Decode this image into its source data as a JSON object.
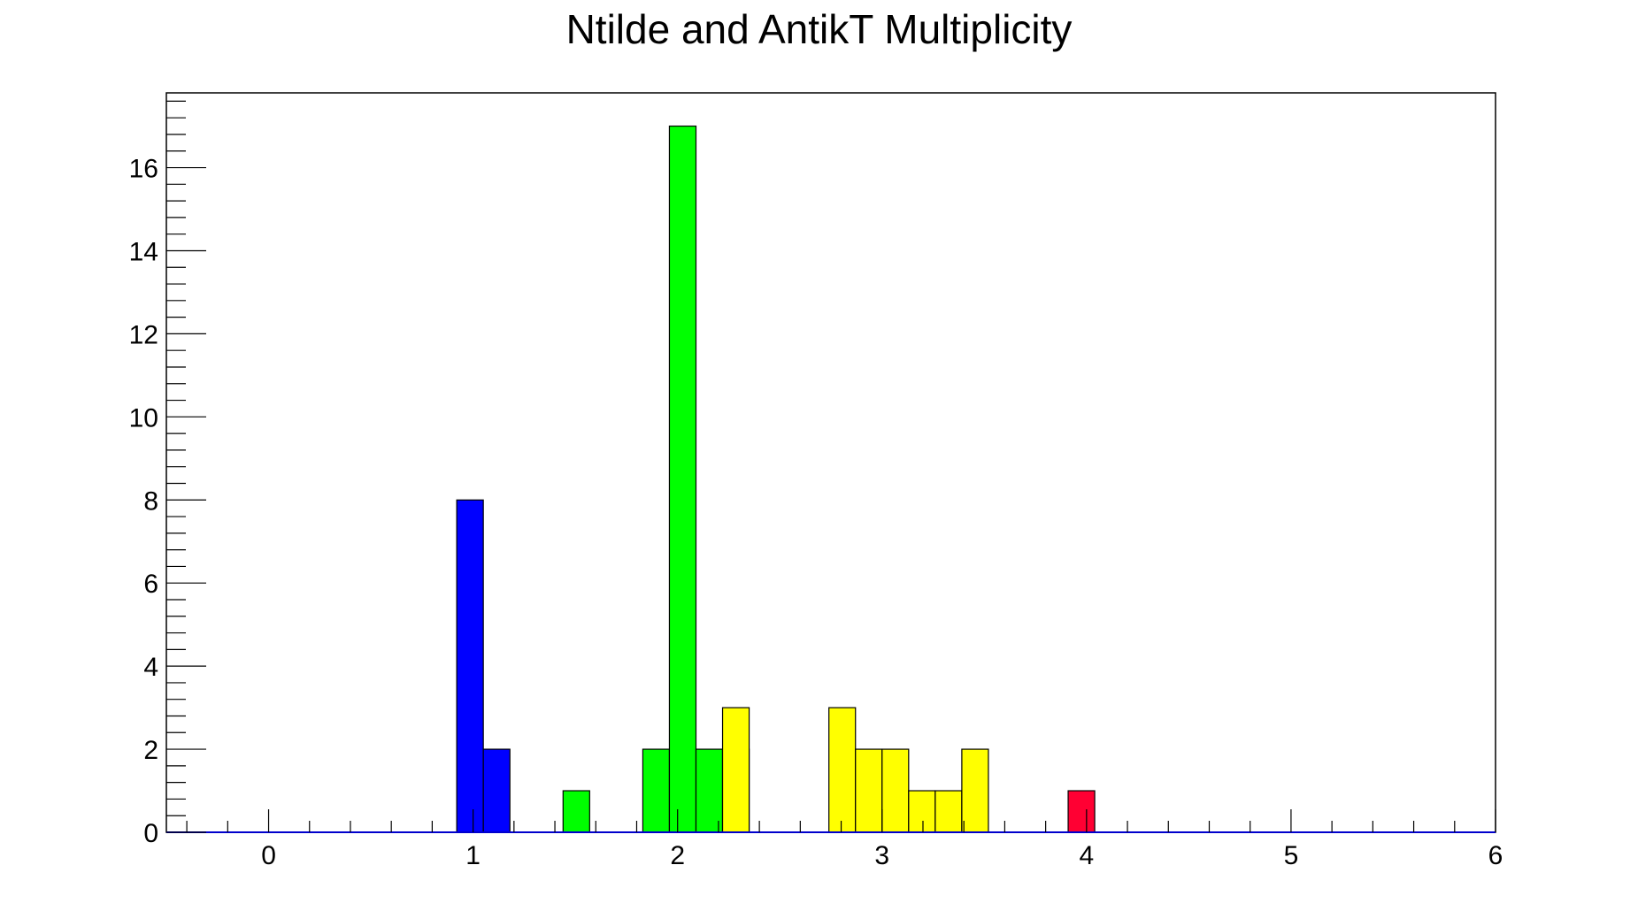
{
  "chart_data": {
    "type": "bar",
    "title": "Ntilde and AntikT Multiplicity",
    "xlabel": "",
    "ylabel": "",
    "xlim": [
      -0.5,
      6
    ],
    "ylim": [
      0,
      17.8
    ],
    "x_ticks": [
      0,
      1,
      2,
      3,
      4,
      5,
      6
    ],
    "y_ticks": [
      0,
      2,
      4,
      6,
      8,
      10,
      12,
      14,
      16
    ],
    "grid": false,
    "bin_width": 0.13,
    "series": [
      {
        "color": "#0000ff",
        "x": [
          0.92,
          1.05
        ],
        "values": [
          8,
          2
        ]
      },
      {
        "color": "#00ff00",
        "x": [
          1.44,
          1.83,
          1.96,
          2.09,
          2.22
        ],
        "values": [
          1,
          2,
          17,
          2,
          2
        ]
      },
      {
        "color": "#ffff00",
        "x": [
          2.22,
          2.74,
          2.87,
          3.0,
          3.13,
          3.26,
          3.39
        ],
        "values": [
          3,
          3,
          2,
          2,
          1,
          1,
          2
        ]
      },
      {
        "color": "#ff0033",
        "x": [
          3.91
        ],
        "values": [
          1
        ]
      }
    ]
  }
}
